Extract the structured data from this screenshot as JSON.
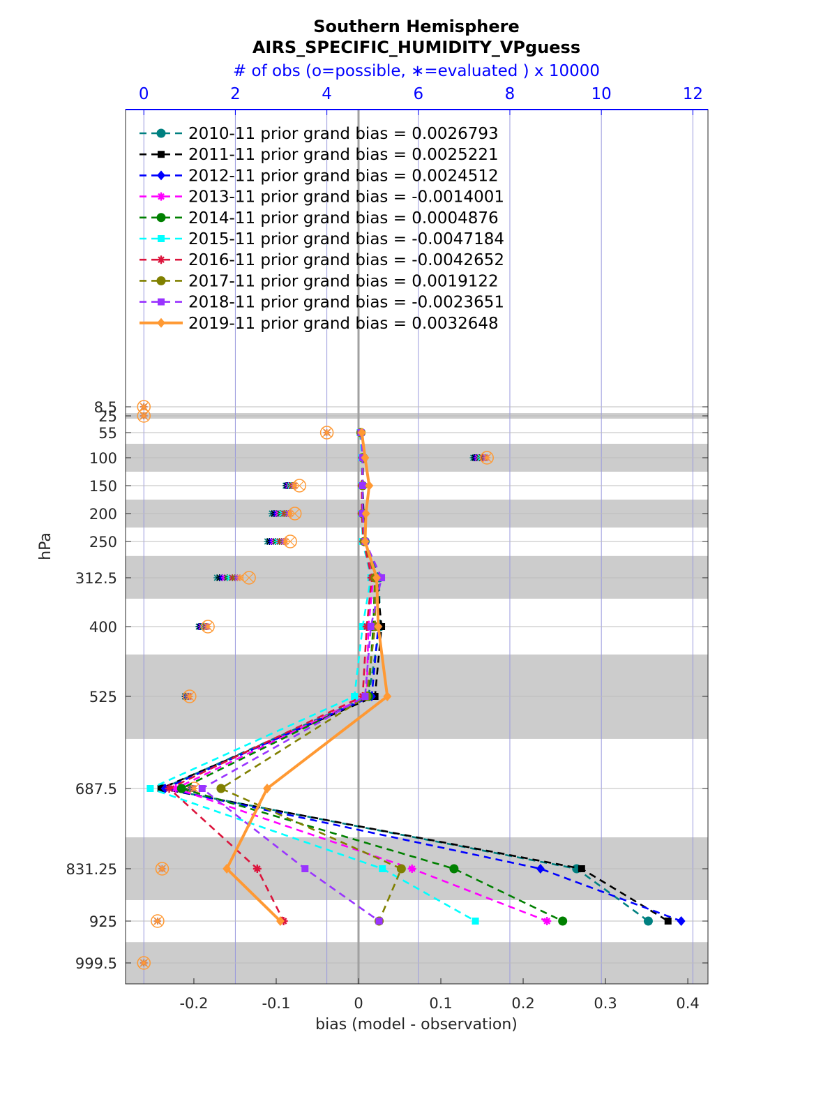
{
  "chart_data": {
    "type": "line",
    "title": "Southern Hemisphere",
    "subtitle": "AIRS_SPECIFIC_HUMIDITY_VPguess",
    "top_axis_label": "# of obs (o=possible, ∗=evaluated ) x 10000",
    "xlabel": "bias (model - observation)",
    "ylabel": "hPa",
    "xlim": [
      -0.283,
      0.4245
    ],
    "top_xlim": [
      -0.4,
      12.33
    ],
    "x_ticks": [
      -0.2,
      -0.1,
      0,
      0.1,
      0.2,
      0.3,
      0.4
    ],
    "x_tick_labels": [
      "-0.2",
      "-0.1",
      "0",
      "0.1",
      "0.2",
      "0.3",
      "0.4"
    ],
    "top_ticks": [
      0,
      2,
      4,
      6,
      8,
      10,
      12
    ],
    "top_tick_labels": [
      "0",
      "2",
      "4",
      "6",
      "8",
      "10",
      "12"
    ],
    "levels": [
      8.5,
      25,
      55,
      100,
      150,
      200,
      250,
      312.5,
      400,
      525,
      687.5,
      831.25,
      925,
      999.5
    ],
    "level_labels": [
      "8.5",
      "25",
      "55",
      "100",
      "150",
      "200",
      "250",
      "312.5",
      "400",
      "525",
      "687.5",
      "831.25",
      "925",
      "999.5"
    ],
    "shaded_bands_hPa": [
      [
        20,
        30
      ],
      [
        75,
        125
      ],
      [
        175,
        225
      ],
      [
        275,
        350
      ],
      [
        450,
        600
      ],
      [
        775,
        887.5
      ],
      [
        962.5,
        1037
      ]
    ],
    "legend_location": "top-left",
    "series": [
      {
        "name": "2010-11",
        "label": "2010-11 prior grand bias = 0.0026793",
        "color": "#008080",
        "marker": "circle",
        "dash": true,
        "levels": [
          55,
          100,
          150,
          200,
          250,
          312.5,
          400,
          525,
          687.5,
          831.25,
          925
        ],
        "bias": [
          0.003,
          0.006,
          0.005,
          0.006,
          0.008,
          0.025,
          0.026,
          0.012,
          -0.238,
          0.265,
          0.352
        ]
      },
      {
        "name": "2011-11",
        "label": "2011-11 prior grand bias = 0.0025221",
        "color": "#000000",
        "marker": "square",
        "dash": true,
        "levels": [
          55,
          100,
          150,
          200,
          250,
          312.5,
          400,
          525,
          687.5,
          831.25,
          925
        ],
        "bias": [
          0.003,
          0.005,
          0.005,
          0.006,
          0.008,
          0.022,
          0.028,
          0.02,
          -0.24,
          0.271,
          0.376
        ]
      },
      {
        "name": "2012-11",
        "label": "2012-11 prior grand bias = 0.0024512",
        "color": "#0000ff",
        "marker": "diamond",
        "dash": true,
        "levels": [
          55,
          100,
          150,
          200,
          250,
          312.5,
          400,
          525,
          687.5,
          831.25,
          925
        ],
        "bias": [
          0.003,
          0.005,
          0.005,
          0.005,
          0.007,
          0.021,
          0.024,
          0.016,
          -0.235,
          0.221,
          0.392
        ]
      },
      {
        "name": "2013-11",
        "label": "2013-11 prior grand bias = -0.0014001",
        "color": "#ff00ff",
        "marker": "star",
        "dash": true,
        "levels": [
          55,
          100,
          150,
          200,
          250,
          312.5,
          400,
          525,
          687.5,
          831.25,
          925
        ],
        "bias": [
          0.003,
          0.005,
          0.004,
          0.004,
          0.006,
          0.018,
          0.012,
          0.01,
          -0.222,
          0.065,
          0.229
        ]
      },
      {
        "name": "2014-11",
        "label": "2014-11 prior grand bias = 0.0004876",
        "color": "#008000",
        "marker": "hexagram",
        "dash": true,
        "levels": [
          55,
          100,
          150,
          200,
          250,
          312.5,
          400,
          525,
          687.5,
          831.25,
          925
        ],
        "bias": [
          0.003,
          0.005,
          0.005,
          0.005,
          0.007,
          0.02,
          0.018,
          0.012,
          -0.215,
          0.116,
          0.248
        ]
      },
      {
        "name": "2015-11",
        "label": "2015-11 prior grand bias = -0.0047184",
        "color": "#00ffff",
        "marker": "square",
        "dash": true,
        "levels": [
          55,
          100,
          150,
          200,
          250,
          312.5,
          400,
          525,
          687.5,
          831.25,
          925
        ],
        "bias": [
          0.002,
          0.004,
          0.004,
          0.004,
          0.005,
          0.015,
          0.005,
          -0.005,
          -0.253,
          0.029,
          0.142
        ]
      },
      {
        "name": "2016-11",
        "label": "2016-11 prior grand bias = -0.0042652",
        "color": "#dc143c",
        "marker": "asterisk",
        "dash": true,
        "levels": [
          55,
          100,
          150,
          200,
          250,
          312.5,
          400,
          525,
          687.5,
          831.25,
          925
        ],
        "bias": [
          0.003,
          0.005,
          0.004,
          0.004,
          0.006,
          0.016,
          0.01,
          0.005,
          -0.23,
          -0.123,
          -0.091
        ]
      },
      {
        "name": "2017-11",
        "label": "2017-11 prior grand bias = 0.0019122",
        "color": "#808000",
        "marker": "circle",
        "dash": true,
        "levels": [
          55,
          100,
          150,
          200,
          250,
          312.5,
          400,
          525,
          687.5,
          831.25,
          925
        ],
        "bias": [
          0.003,
          0.006,
          0.005,
          0.005,
          0.007,
          0.02,
          0.02,
          0.01,
          -0.167,
          0.052,
          0.025
        ]
      },
      {
        "name": "2018-11",
        "label": "2018-11 prior grand bias = -0.0023651",
        "color": "#9933ff",
        "marker": "square",
        "dash": true,
        "levels": [
          55,
          100,
          150,
          200,
          250,
          312.5,
          400,
          525,
          687.5,
          831.25,
          925
        ],
        "bias": [
          0.003,
          0.005,
          0.005,
          0.005,
          0.008,
          0.028,
          0.015,
          0.008,
          -0.19,
          -0.065,
          0.025
        ]
      },
      {
        "name": "2019-11",
        "label": "2019-11 prior grand bias = 0.0032648",
        "color": "#ff9933",
        "marker": "diamond",
        "dash": false,
        "levels": [
          55,
          100,
          150,
          200,
          250,
          312.5,
          400,
          525,
          687.5,
          831.25,
          925
        ],
        "bias": [
          0.004,
          0.008,
          0.013,
          0.009,
          0.008,
          0.022,
          0.024,
          0.035,
          -0.111,
          -0.16,
          -0.095
        ]
      }
    ],
    "obs_counts": {
      "levels": [
        8.5,
        25,
        55,
        100,
        150,
        200,
        250,
        312.5,
        400,
        525,
        687.5,
        831.25,
        925,
        999.5
      ],
      "possible": [
        0.0,
        0.0,
        4.0,
        7.5,
        3.4,
        3.3,
        3.2,
        2.3,
        1.4,
        1.0,
        1.1,
        0.4,
        0.3,
        0.0
      ],
      "evaluated_min": [
        0.0,
        0.0,
        4.0,
        7.2,
        3.1,
        2.8,
        2.7,
        1.6,
        1.2,
        0.9,
        1.0,
        0.4,
        0.3,
        0.0
      ],
      "evaluated_max": [
        0.0,
        0.0,
        4.0,
        7.5,
        3.3,
        3.2,
        3.1,
        2.1,
        1.4,
        1.0,
        1.1,
        0.4,
        0.3,
        0.0
      ]
    }
  }
}
